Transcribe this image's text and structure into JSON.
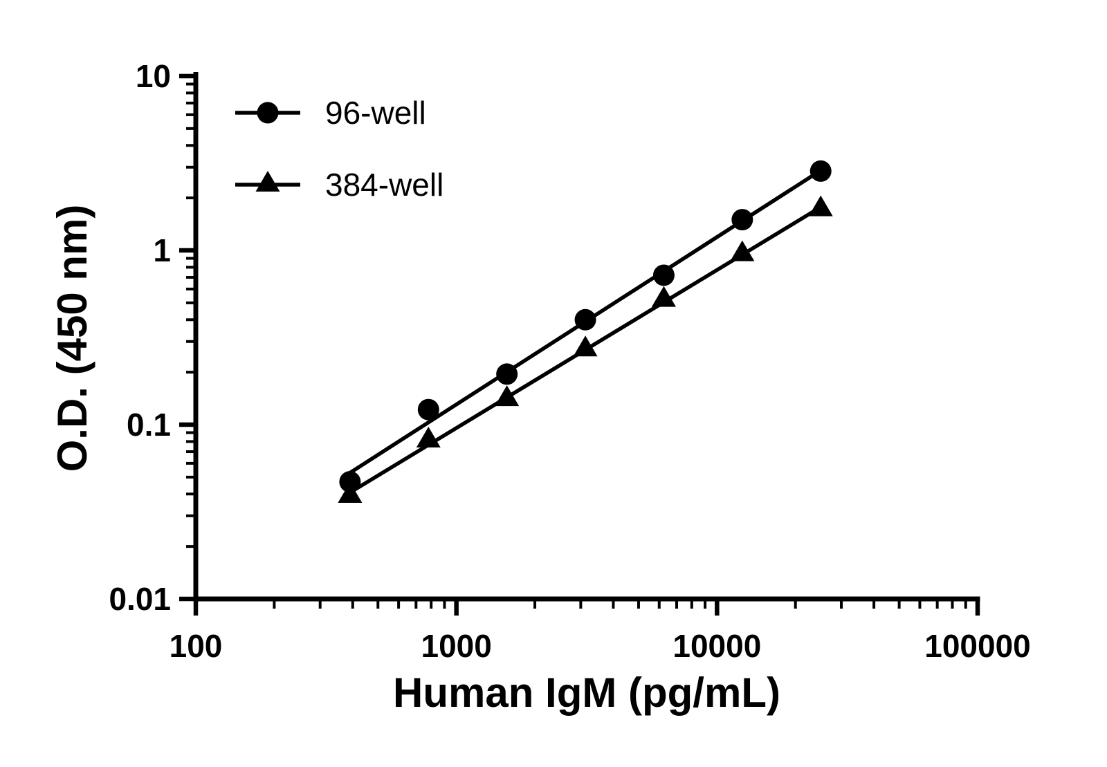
{
  "chart_data": {
    "type": "scatter",
    "scale": "log-log",
    "title": "",
    "xlabel": "Human IgM (pg/mL)",
    "ylabel": "O.D. (450 nm)",
    "xlim": [
      100,
      100000
    ],
    "ylim": [
      0.01,
      10
    ],
    "x_ticks": [
      100,
      1000,
      10000,
      100000
    ],
    "x_tick_labels": [
      "100",
      "1000",
      "10000",
      "100000"
    ],
    "y_ticks": [
      0.01,
      0.1,
      1,
      10
    ],
    "y_tick_labels": [
      "0.01",
      "0.1",
      "1",
      "10"
    ],
    "minor_ticks": true,
    "grid": false,
    "fit": "linear-in-loglog",
    "legend_position": "top-left-inside",
    "colors": {
      "foreground": "#000000",
      "background": "#ffffff"
    },
    "categories_x": [
      390.6,
      781.3,
      1562.5,
      3125,
      6250,
      12500,
      25000
    ],
    "series": [
      {
        "name": "96-well",
        "marker": "circle",
        "color": "#000000",
        "x": [
          390.6,
          781.3,
          1562.5,
          3125,
          6250,
          12500,
          25000
        ],
        "y": [
          0.047,
          0.122,
          0.195,
          0.4,
          0.72,
          1.5,
          2.85
        ]
      },
      {
        "name": "384-well",
        "marker": "triangle",
        "color": "#000000",
        "x": [
          390.6,
          781.3,
          1562.5,
          3125,
          6250,
          12500,
          25000
        ],
        "y": [
          0.039,
          0.081,
          0.14,
          0.27,
          0.52,
          0.95,
          1.72
        ]
      }
    ]
  }
}
